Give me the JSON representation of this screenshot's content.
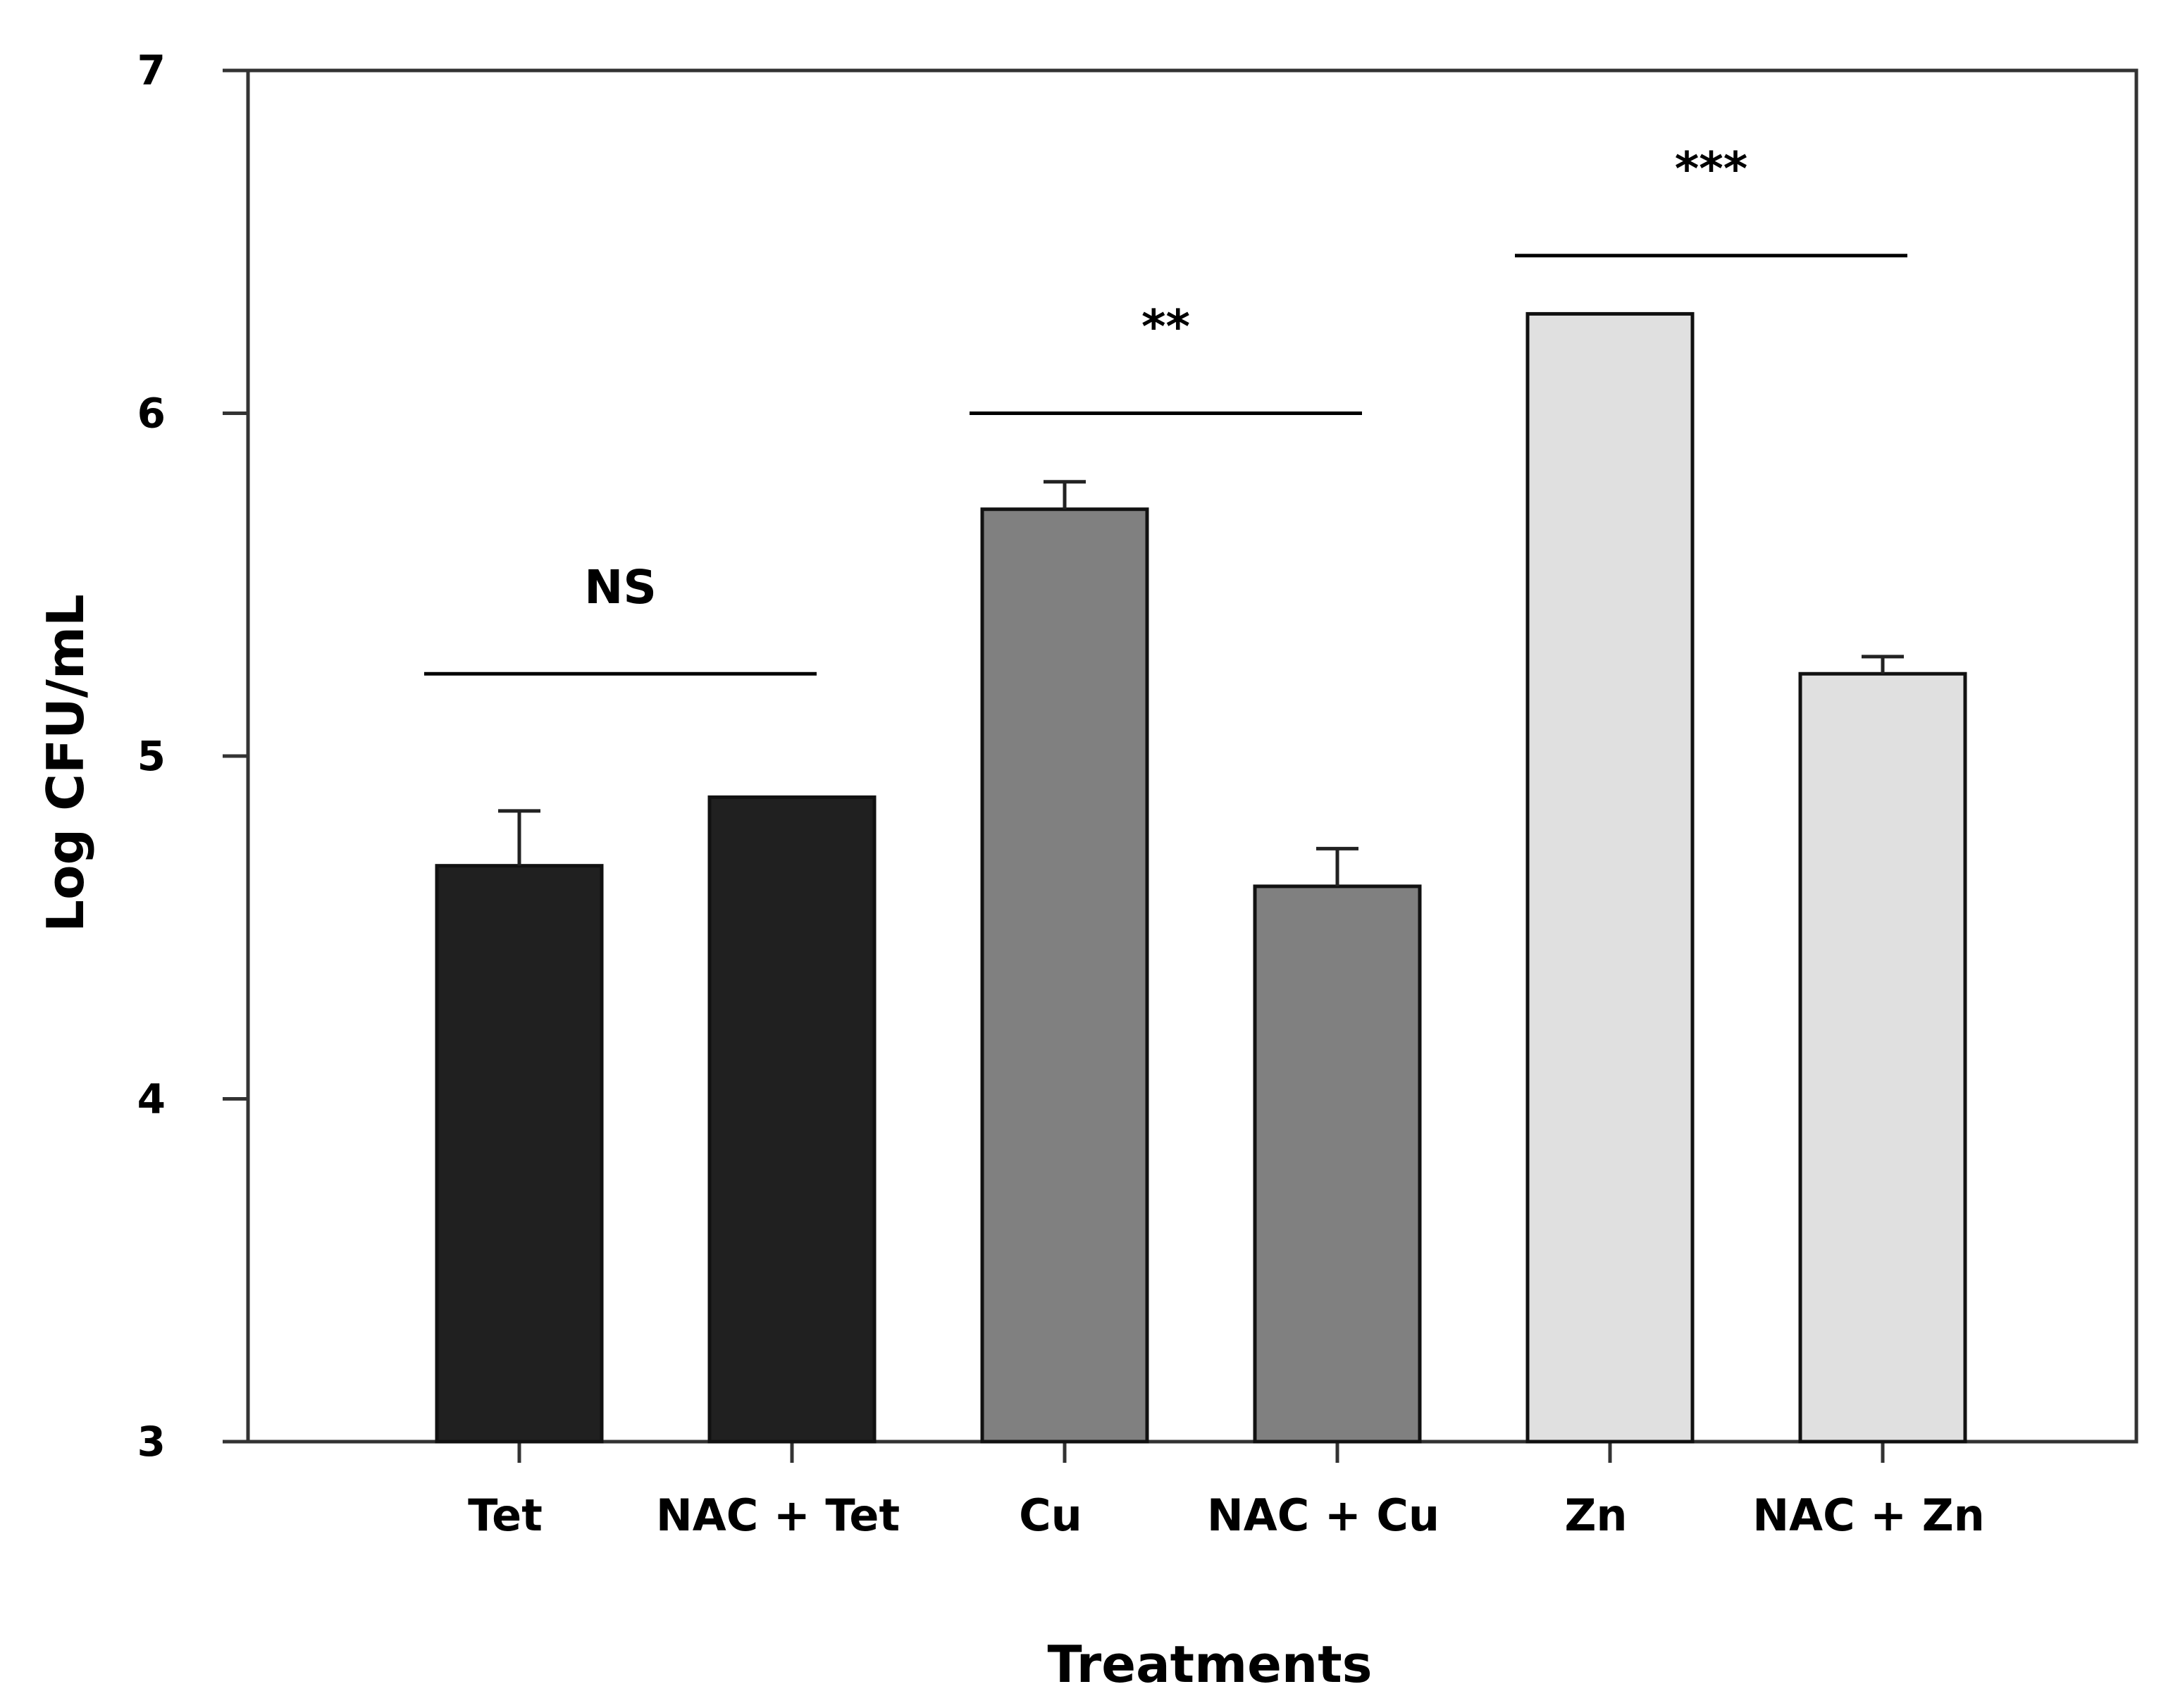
{
  "chart_data": {
    "type": "bar",
    "title": "",
    "xlabel": "Treatments",
    "ylabel": "Log CFU/mL",
    "ylim": [
      3,
      7
    ],
    "yticks": [
      "3",
      "4",
      "5",
      "6",
      "7"
    ],
    "grid": false,
    "categories": [
      "Tet",
      "NAC + Tet",
      "Cu",
      "NAC + Cu",
      "Zn",
      "NAC + Zn"
    ],
    "values": [
      4.68,
      4.88,
      5.72,
      4.62,
      6.29,
      5.24
    ],
    "error_upper": [
      0.16,
      0.0,
      0.08,
      0.11,
      0.0,
      0.05
    ],
    "bar_colors": [
      "#202020",
      "#202020",
      "#808080",
      "#808080",
      "#e0e0e0",
      "#e0e0e0"
    ],
    "significance": [
      {
        "label": "NS",
        "from": 0,
        "to": 1,
        "y": 5.24
      },
      {
        "label": "**",
        "from": 2,
        "to": 3,
        "y": 6.0
      },
      {
        "label": "***",
        "from": 4,
        "to": 5,
        "y": 6.46
      }
    ]
  }
}
